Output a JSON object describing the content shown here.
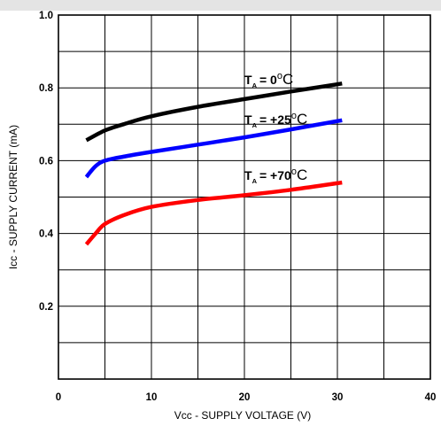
{
  "chart_data": {
    "type": "line",
    "xlabel": "Vcc - SUPPLY VOLTAGE (V)",
    "ylabel": "Icc - SUPPLY CURRENT (mA)",
    "xlim": [
      0,
      40
    ],
    "ylim": [
      0,
      1.0
    ],
    "x_ticks": [
      "0",
      "10",
      "20",
      "30",
      "40"
    ],
    "y_ticks": [
      "0.2",
      "0.4",
      "0.6",
      "0.8",
      "1.0"
    ],
    "grid": true,
    "series": [
      {
        "name": "TA = 0°C",
        "label_parts": {
          "sym": "T",
          "sub": "A",
          "eq": "= 0",
          "deg": "o",
          "unit": "C"
        },
        "color": "#000000",
        "x": [
          3,
          5,
          7,
          10,
          15,
          20,
          25,
          30.5
        ],
        "y": [
          0.656,
          0.683,
          0.7,
          0.722,
          0.748,
          0.769,
          0.79,
          0.812
        ]
      },
      {
        "name": "TA = +25°C",
        "label_parts": {
          "sym": "T",
          "sub": "A",
          "eq": "= +25",
          "deg": "o",
          "unit": "C"
        },
        "color": "#0000ff",
        "x": [
          3,
          4,
          5,
          7,
          10,
          15,
          20,
          25,
          30.5
        ],
        "y": [
          0.555,
          0.585,
          0.6,
          0.611,
          0.624,
          0.644,
          0.664,
          0.686,
          0.711
        ]
      },
      {
        "name": "TA = +70°C",
        "label_parts": {
          "sym": "T",
          "sub": "A",
          "eq": "= +70",
          "deg": "o",
          "unit": "C"
        },
        "color": "#ff0000",
        "x": [
          3,
          4,
          5,
          7,
          10,
          15,
          20,
          25,
          30.5
        ],
        "y": [
          0.37,
          0.4,
          0.426,
          0.45,
          0.473,
          0.492,
          0.505,
          0.52,
          0.54
        ]
      }
    ]
  }
}
